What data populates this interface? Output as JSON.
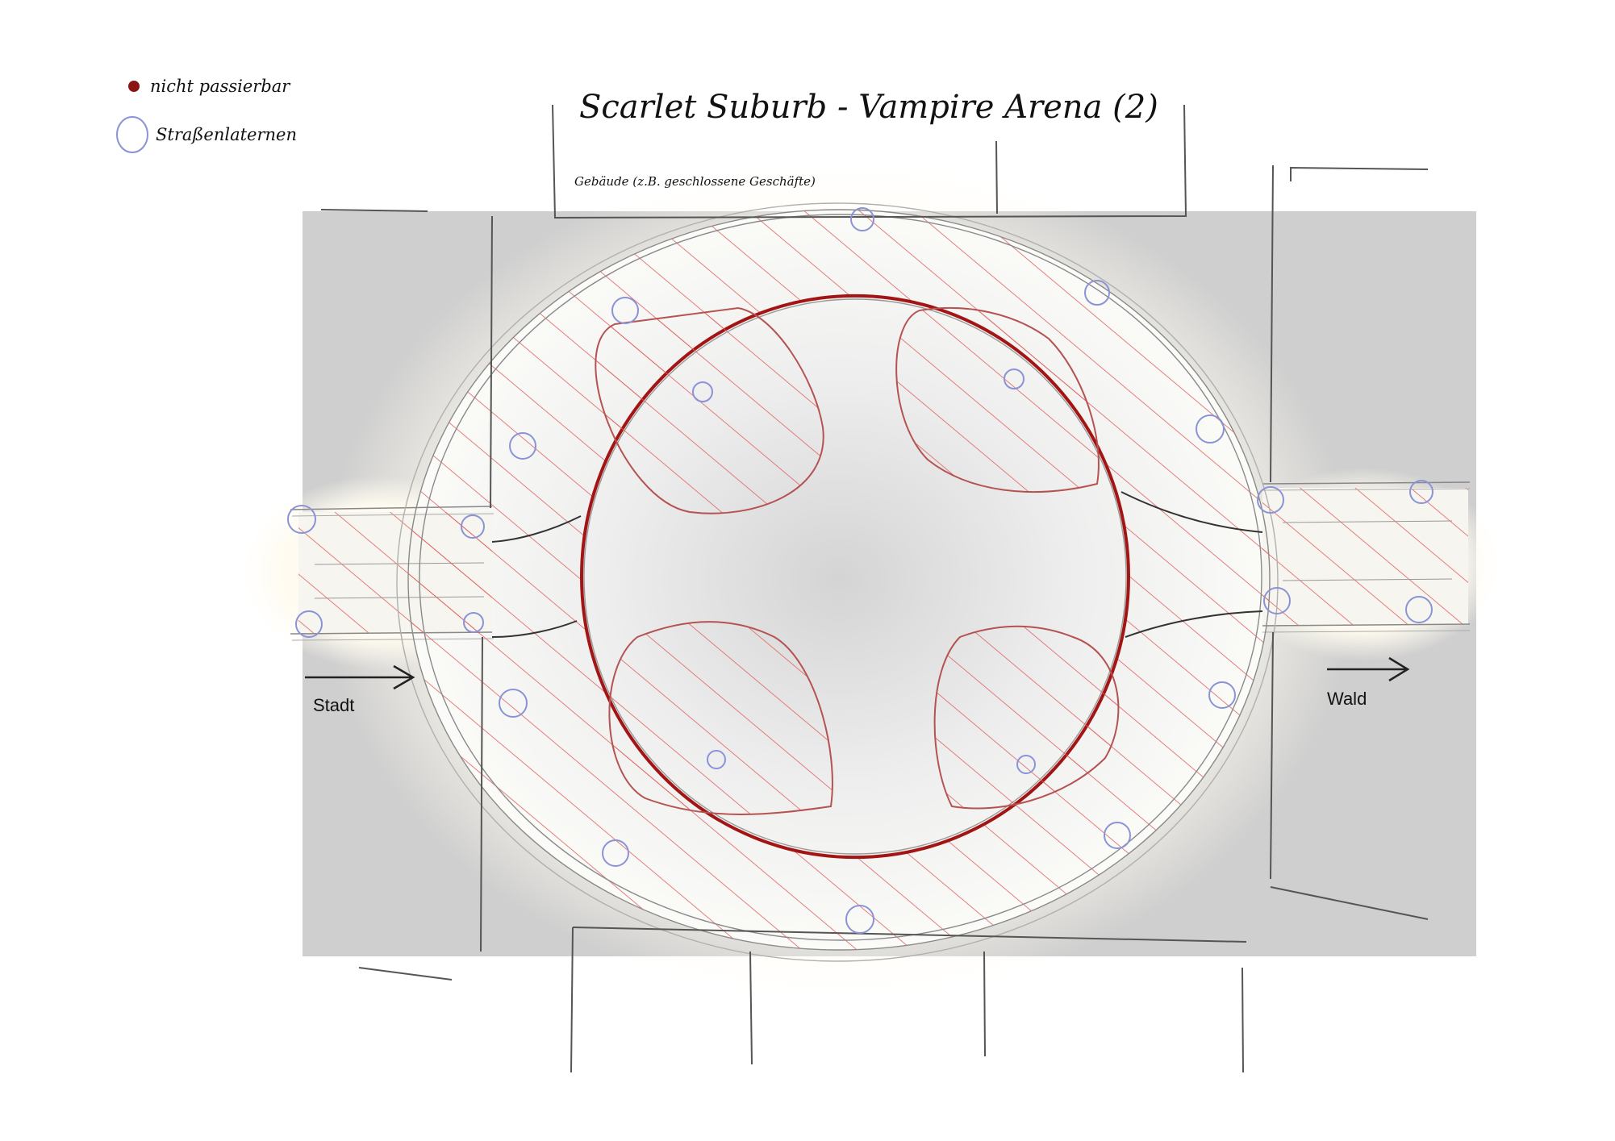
{
  "title": "Scarlet Suburb - Vampire Arena (2)",
  "legend": {
    "items": [
      {
        "label": "nicht passierbar",
        "icon": "red-dot-icon",
        "color": "#8b1414"
      },
      {
        "label": "Straßenlaternen",
        "icon": "lamp-circle-icon",
        "color": "#8a93d6"
      }
    ]
  },
  "annotations": {
    "buildings": "Gebäude (z.B. geschlossene Geschäfte)",
    "exit_left": "Stadt",
    "exit_right": "Wald"
  },
  "colors": {
    "building": "#cfcfcf",
    "hatch": "#e06060",
    "arena_ring": "#a31515",
    "lamp": "#8a93d6",
    "pencil": "#7a7a7a",
    "glow": "#fffbf0"
  }
}
